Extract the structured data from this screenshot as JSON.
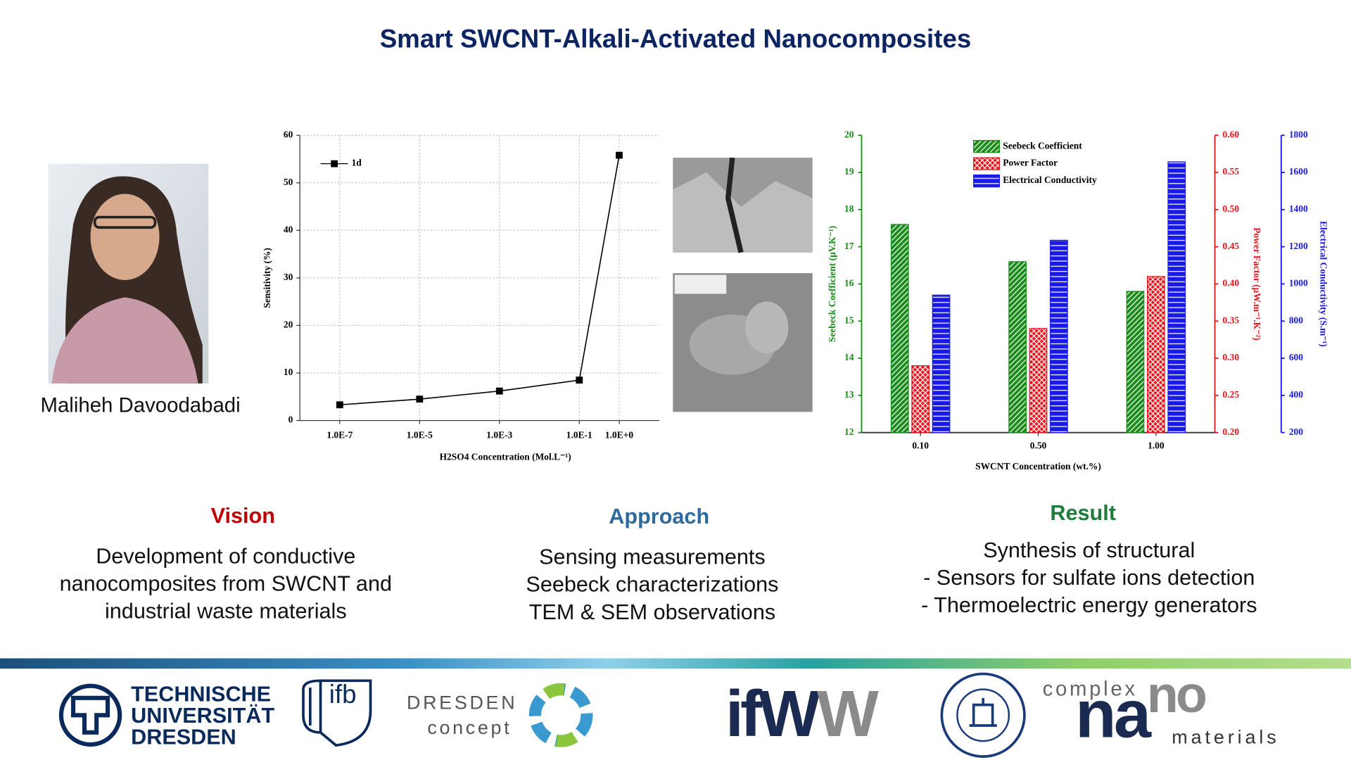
{
  "title": "Smart SWCNT-Alkali-Activated Nanocomposites",
  "presenter": {
    "name": "Maliheh Davoodabadi"
  },
  "chart_data": [
    {
      "type": "line",
      "x_label": "H2SO4 Concentration (Mol.L⁻¹)",
      "y_label": "Sensitivity (%)",
      "x": [
        1e-07,
        1e-05,
        0.001,
        0.1,
        1
      ],
      "series": [
        {
          "name": "1d",
          "color": "#000000",
          "values": [
            3.3,
            4.5,
            6.2,
            8.5,
            55.8
          ]
        }
      ],
      "xscale": "log",
      "xlim": [
        1e-08,
        10
      ],
      "xticks": [
        {
          "value": 1e-07,
          "label": "1.0E-7"
        },
        {
          "value": 1e-05,
          "label": "1.0E-5"
        },
        {
          "value": 0.001,
          "label": "1.0E-3"
        },
        {
          "value": 0.1,
          "label": "1.0E-1"
        },
        {
          "value": 1,
          "label": "1.0E+0"
        }
      ],
      "ylim": [
        0,
        60
      ],
      "yticks": [
        0,
        10,
        20,
        30,
        40,
        50,
        60
      ],
      "grid": true,
      "legend": "upper left"
    },
    {
      "type": "bar",
      "x_label": "SWCNT Concentration (wt.%)",
      "y_label": "Seebeck Coefficient (µV.K⁻¹)",
      "y2_label": "Power Factor (µW.m⁻¹.K⁻²)",
      "y3_label": "Electrical Conductivity (S.m⁻¹)",
      "categories": [
        "0.10",
        "0.50",
        "1.00"
      ],
      "series": [
        {
          "name": "Seebeck Coefficient",
          "color": "#1a8c1a",
          "axis": "y",
          "values": [
            17.6,
            16.6,
            15.8
          ]
        },
        {
          "name": "Power Factor",
          "color": "#e8141c",
          "axis": "y2",
          "values": [
            0.29,
            0.34,
            0.41
          ]
        },
        {
          "name": "Electrical Conductivity",
          "color": "#1a1ae6",
          "axis": "y3",
          "values": [
            940,
            1235,
            1657
          ]
        }
      ],
      "ylim": [
        12,
        20
      ],
      "yticks": [
        12,
        13,
        14,
        15,
        16,
        17,
        18,
        19,
        20
      ],
      "y2lim": [
        0.2,
        0.6
      ],
      "y2ticks": [
        {
          "value": 0.2,
          "label": "0.20"
        },
        {
          "value": 0.25,
          "label": "0.25"
        },
        {
          "value": 0.3,
          "label": "0.30"
        },
        {
          "value": 0.35,
          "label": "0.35"
        },
        {
          "value": 0.4,
          "label": "0.40"
        },
        {
          "value": 0.45,
          "label": "0.45"
        },
        {
          "value": 0.5,
          "label": "0.50"
        },
        {
          "value": 0.55,
          "label": "0.55"
        },
        {
          "value": 0.6,
          "label": "0.60"
        }
      ],
      "y3lim": [
        200,
        1800
      ],
      "y3ticks": [
        200,
        400,
        600,
        800,
        1000,
        1200,
        1400,
        1600,
        1800
      ],
      "legend": "upper left"
    }
  ],
  "sections": [
    {
      "heading": "Vision",
      "color": "#c00000",
      "lines": [
        "Development of conductive",
        "nanocomposites from SWCNT and",
        "industrial waste materials"
      ]
    },
    {
      "heading": "Approach",
      "color": "#2e6a9e",
      "lines": [
        "Sensing measurements",
        "Seebeck characterizations",
        "TEM & SEM observations"
      ]
    },
    {
      "heading": "Result",
      "color": "#1e7d3c",
      "lines": [
        "Synthesis of structural",
        "- Sensors for sulfate ions detection",
        "- Thermoelectric energy generators"
      ]
    }
  ],
  "logos": {
    "tu_dresden": [
      "TECHNISCHE",
      "UNIVERSITÄT",
      "DRESDEN"
    ],
    "ifb": "ifb",
    "dresden_concept": [
      "DRESDEN",
      "concept"
    ],
    "ifww": [
      "ifW",
      "W"
    ],
    "complex_nano": [
      "complex",
      "na",
      "no",
      "materials"
    ]
  }
}
